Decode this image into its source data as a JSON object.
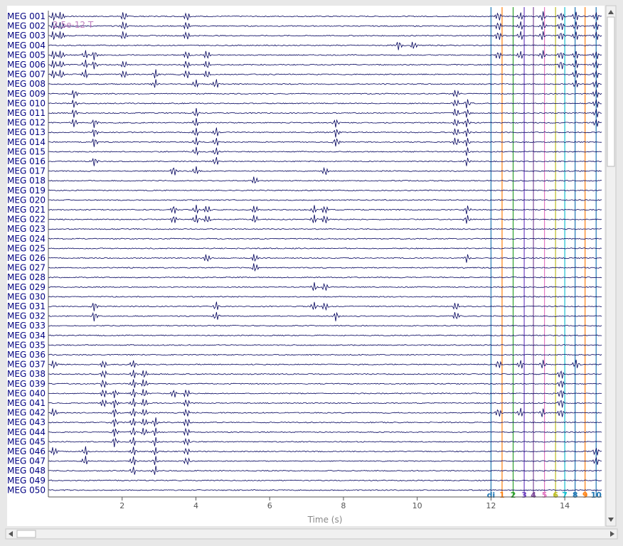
{
  "window": {
    "scale_overlay": "2.5e-12 T"
  },
  "colors": {
    "trace": "#00005c",
    "axis": "#555555",
    "xlabel": "#888888",
    "overlay": "#b060b0",
    "events": [
      "#1f77b4",
      "#ff7f0e",
      "#2ca02c",
      "#6f42c1",
      "#7d4a9a",
      "#e377c2",
      "#bcbd22",
      "#17becf",
      "#1f77b4",
      "#ff7f0e"
    ]
  },
  "chart_data": {
    "type": "line",
    "title": "",
    "xlabel": "Time (s)",
    "ylabel": "",
    "xlim": [
      0,
      15
    ],
    "xticks": [
      2,
      4,
      6,
      8,
      10,
      12,
      14
    ],
    "grid": false,
    "channels": [
      "MEG 001",
      "MEG 002",
      "MEG 003",
      "MEG 004",
      "MEG 005",
      "MEG 006",
      "MEG 007",
      "MEG 008",
      "MEG 009",
      "MEG 010",
      "MEG 011",
      "MEG 012",
      "MEG 013",
      "MEG 014",
      "MEG 015",
      "MEG 016",
      "MEG 017",
      "MEG 018",
      "MEG 019",
      "MEG 020",
      "MEG 021",
      "MEG 022",
      "MEG 023",
      "MEG 024",
      "MEG 025",
      "MEG 026",
      "MEG 027",
      "MEG 028",
      "MEG 029",
      "MEG 030",
      "MEG 031",
      "MEG 032",
      "MEG 033",
      "MEG 034",
      "MEG 035",
      "MEG 036",
      "MEG 037",
      "MEG 038",
      "MEG 039",
      "MEG 040",
      "MEG 041",
      "MEG 042",
      "MEG 043",
      "MEG 044",
      "MEG 045",
      "MEG 046",
      "MEG 047",
      "MEG 048",
      "MEG 049",
      "MEG 050"
    ],
    "bursts": [
      {
        "t": 0.15,
        "ch": [
          0,
          1,
          2,
          4,
          5,
          6,
          36,
          41,
          45
        ]
      },
      {
        "t": 0.35,
        "ch": [
          0,
          1,
          2,
          4,
          5,
          6
        ]
      },
      {
        "t": 0.7,
        "ch": [
          8,
          9,
          10,
          11
        ]
      },
      {
        "t": 1.0,
        "ch": [
          4,
          5,
          6,
          45,
          46
        ]
      },
      {
        "t": 1.25,
        "ch": [
          4,
          5,
          11,
          12,
          13,
          15,
          30,
          31
        ]
      },
      {
        "t": 1.5,
        "ch": [
          36,
          37,
          38,
          39,
          40
        ]
      },
      {
        "t": 1.8,
        "ch": [
          39,
          40,
          41,
          42,
          43,
          44
        ]
      },
      {
        "t": 2.05,
        "ch": [
          0,
          1,
          2,
          5,
          6
        ]
      },
      {
        "t": 2.3,
        "ch": [
          36,
          37,
          38,
          39,
          40,
          41,
          42,
          43,
          44,
          45,
          46,
          47
        ]
      },
      {
        "t": 2.6,
        "ch": [
          37,
          38,
          39,
          40,
          41,
          42,
          43
        ]
      },
      {
        "t": 2.9,
        "ch": [
          6,
          7,
          42,
          43,
          44,
          45,
          46,
          47
        ]
      },
      {
        "t": 3.4,
        "ch": [
          16,
          20,
          21,
          39
        ]
      },
      {
        "t": 3.75,
        "ch": [
          0,
          1,
          2,
          4,
          5,
          6,
          39,
          40,
          41,
          42,
          43,
          44,
          45,
          46
        ]
      },
      {
        "t": 4.0,
        "ch": [
          7,
          10,
          11,
          12,
          13,
          14,
          16,
          20,
          21
        ]
      },
      {
        "t": 4.3,
        "ch": [
          4,
          5,
          6,
          20,
          21,
          25
        ]
      },
      {
        "t": 4.55,
        "ch": [
          7,
          12,
          13,
          14,
          15,
          30,
          31
        ]
      },
      {
        "t": 5.6,
        "ch": [
          17,
          20,
          21,
          25,
          26
        ]
      },
      {
        "t": 7.2,
        "ch": [
          20,
          21,
          28,
          30
        ]
      },
      {
        "t": 7.5,
        "ch": [
          16,
          20,
          21,
          28,
          30
        ]
      },
      {
        "t": 7.8,
        "ch": [
          11,
          12,
          13,
          31
        ]
      },
      {
        "t": 9.5,
        "ch": [
          3
        ]
      },
      {
        "t": 9.9,
        "ch": [
          3
        ]
      },
      {
        "t": 11.05,
        "ch": [
          8,
          9,
          10,
          11,
          12,
          13,
          30,
          31
        ]
      },
      {
        "t": 11.35,
        "ch": [
          9,
          10,
          11,
          12,
          13,
          14,
          15,
          20,
          21,
          25
        ]
      },
      {
        "t": 12.2,
        "ch": [
          0,
          1,
          2,
          4,
          36,
          41
        ]
      },
      {
        "t": 12.8,
        "ch": [
          0,
          1,
          2,
          4,
          36,
          41
        ]
      },
      {
        "t": 13.4,
        "ch": [
          0,
          1,
          2,
          4,
          36,
          41
        ]
      },
      {
        "t": 13.9,
        "ch": [
          0,
          1,
          2,
          4,
          5,
          37,
          38,
          39,
          40,
          41
        ]
      },
      {
        "t": 14.3,
        "ch": [
          0,
          1,
          2,
          4,
          5,
          6,
          7,
          36
        ]
      },
      {
        "t": 14.85,
        "ch": [
          0,
          1,
          2,
          4,
          5,
          6,
          7,
          8,
          9,
          10,
          11,
          45,
          46
        ]
      }
    ],
    "events": [
      {
        "t": 12.0,
        "label": "di"
      },
      {
        "t": 12.3,
        "label": "1"
      },
      {
        "t": 12.6,
        "label": "2"
      },
      {
        "t": 12.9,
        "label": "3"
      },
      {
        "t": 13.15,
        "label": "4"
      },
      {
        "t": 13.45,
        "label": "5"
      },
      {
        "t": 13.75,
        "label": "6"
      },
      {
        "t": 14.0,
        "label": "7"
      },
      {
        "t": 14.28,
        "label": "8"
      },
      {
        "t": 14.55,
        "label": "9"
      },
      {
        "t": 14.85,
        "label": "10"
      }
    ]
  }
}
